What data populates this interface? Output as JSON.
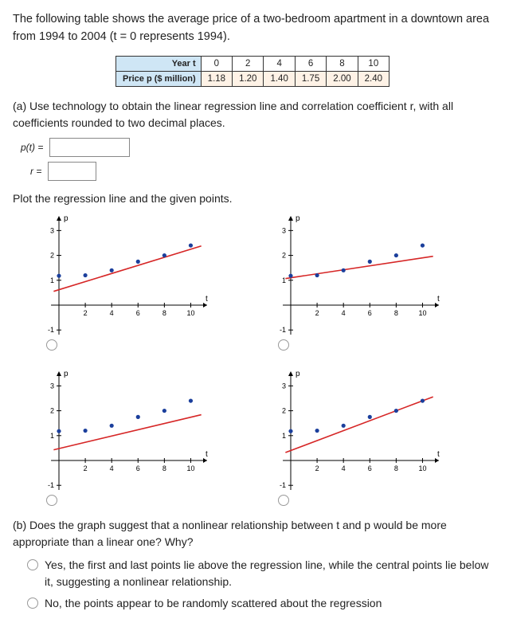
{
  "intro": "The following table shows the average price of a two-bedroom apartment in a downtown area from 1994 to 2004 (t = 0 represents 1994).",
  "table": {
    "row1_label": "Year t",
    "row1": [
      "0",
      "2",
      "4",
      "6",
      "8",
      "10"
    ],
    "row2_label": "Price p\n($ million)",
    "row2": [
      "1.18",
      "1.20",
      "1.40",
      "1.75",
      "2.00",
      "2.40"
    ]
  },
  "part_a": "(a) Use technology to obtain the linear regression line and correlation coefficient r, with all coefficients rounded to two decimal places.",
  "pt_label": "p(t) = ",
  "r_label": "r = ",
  "plot_prompt": "Plot the regression line and the given points.",
  "axis_y_label": "p",
  "axis_x_label": "t",
  "x_ticks": [
    2,
    4,
    6,
    8,
    10
  ],
  "y_ticks": [
    -1,
    1,
    2,
    3
  ],
  "data_points": [
    [
      0,
      1.18
    ],
    [
      2,
      1.2
    ],
    [
      4,
      1.4
    ],
    [
      6,
      1.75
    ],
    [
      8,
      2.0
    ],
    [
      10,
      2.4
    ]
  ],
  "point_color": "#1b3f9c",
  "line_color": "#d62626",
  "axis_color": "#000000",
  "plot1": {
    "slope": 0.163,
    "intercept": 0.62
  },
  "plot2": {
    "slope": 0.08,
    "intercept": 1.1
  },
  "plot3": {
    "slope": 0.126,
    "intercept": 0.48
  },
  "plot4": {
    "slope": 0.2,
    "intercept": 0.4
  },
  "part_b": "(b) Does the graph suggest that a nonlinear relationship between t and p would be more appropriate than a linear one? Why?",
  "opt1": "Yes, the first and last points lie above the regression line, while the central points lie below it, suggesting a nonlinear relationship.",
  "opt2": "No, the points appear to be randomly scattered about the regression"
}
